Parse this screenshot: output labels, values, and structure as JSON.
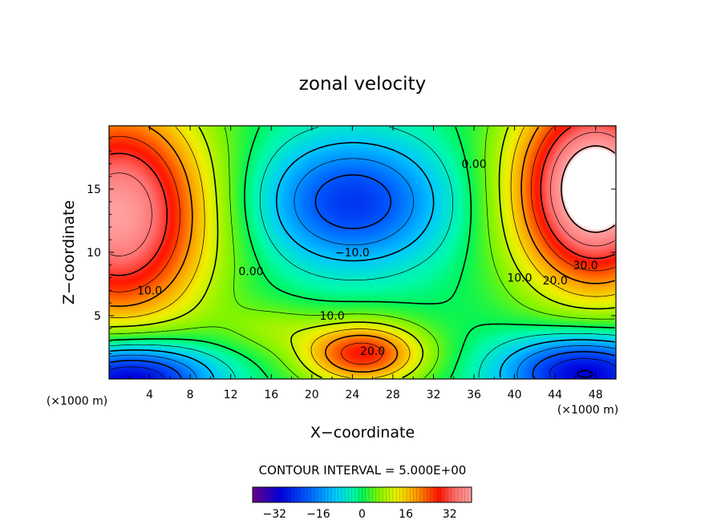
{
  "chart_data": {
    "type": "heatmap",
    "title": "zonal velocity",
    "xlabel": "X−coordinate",
    "ylabel": "Z−coordinate",
    "x_units": "(×1000 m)",
    "y_units": "(×1000 m)",
    "xlim": [
      0,
      50
    ],
    "ylim": [
      0,
      20
    ],
    "x_ticks": [
      4,
      8,
      12,
      16,
      20,
      24,
      28,
      32,
      36,
      40,
      44,
      48
    ],
    "y_ticks": [
      5,
      10,
      15
    ],
    "contour_interval_text": "CONTOUR INTERVAL = 5.000E+00",
    "colorbar": {
      "min": -40,
      "max": 40,
      "ticks": [
        -32,
        -16,
        0,
        16,
        32
      ],
      "tick_labels": [
        "−32",
        "−16",
        "0",
        "16",
        "32"
      ]
    },
    "contour_labels": [
      {
        "text": "0.00",
        "x": 36,
        "z": 17
      },
      {
        "text": "−10.0",
        "x": 24,
        "z": 10
      },
      {
        "text": "0.00",
        "x": 14,
        "z": 8.5
      },
      {
        "text": "10.0",
        "x": 4,
        "z": 7
      },
      {
        "text": "10.0",
        "x": 22,
        "z": 5
      },
      {
        "text": "20.0",
        "x": 26,
        "z": 2.2
      },
      {
        "text": "10.0",
        "x": 40.5,
        "z": 8
      },
      {
        "text": "20.0",
        "x": 44,
        "z": 7.8
      },
      {
        "text": "30.0",
        "x": 47,
        "z": 9
      }
    ],
    "features": [
      {
        "x": 3,
        "z": 14,
        "value": 34
      },
      {
        "x": 46,
        "z": 15,
        "value": 42
      },
      {
        "x": 24,
        "z": 14,
        "value": -20
      },
      {
        "x": 3,
        "z": 1,
        "value": -30
      },
      {
        "x": 46,
        "z": 1.5,
        "value": -28
      },
      {
        "x": 25,
        "z": 2.5,
        "value": 24
      }
    ]
  }
}
